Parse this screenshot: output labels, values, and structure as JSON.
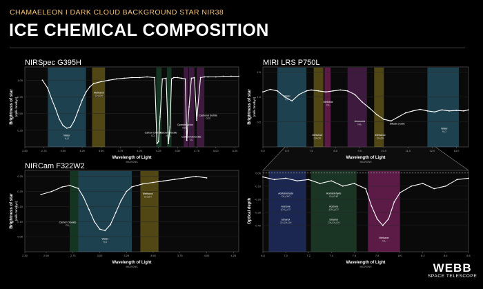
{
  "header": {
    "kicker": "CHAMAELEON I DARK CLOUD BACKGROUND STAR NIR38",
    "title": "ICE CHEMICAL COMPOSITION"
  },
  "logo": {
    "word": "WEBB",
    "sub": "SPACE TELESCOPE"
  },
  "colors": {
    "water": "#2f6f88",
    "methanol": "#8a7a1e",
    "carbon": "#1f5a38",
    "purple": "#6a2a6a",
    "methane": "#a02a7a",
    "blue": "#2a3f8a",
    "green": "#2a5a3a",
    "grid": "#2a2a2a",
    "line": "#ffffff"
  },
  "chart_data": [
    {
      "type": "line",
      "title": "NIRSpec G395H",
      "xlabel": "Wavelength of Light",
      "xunit": "MICRONS",
      "ylabel": "Brightness of star",
      "yunit": "(milli-Janskys)",
      "xlim": [
        2.5,
        5.3
      ],
      "ylim": [
        0,
        1.2
      ],
      "xticks": [
        "2.50",
        "2.75",
        "3.00",
        "3.25",
        "3.50",
        "3.75",
        "4.00",
        "4.25",
        "4.50",
        "4.75",
        "5.00",
        "5.25"
      ],
      "yticks": [
        "0.25",
        "0.50",
        "0.75",
        "1.00"
      ],
      "bands": [
        {
          "from": 2.8,
          "to": 3.3,
          "color": "water"
        },
        {
          "from": 3.38,
          "to": 3.55,
          "color": "methanol"
        },
        {
          "from": 4.22,
          "to": 4.29,
          "color": "carbon"
        },
        {
          "from": 4.36,
          "to": 4.42,
          "color": "carbon"
        },
        {
          "from": 4.58,
          "to": 4.64,
          "color": "purple"
        },
        {
          "from": 4.65,
          "to": 4.72,
          "color": "purple"
        },
        {
          "from": 4.75,
          "to": 4.85,
          "color": "purple"
        }
      ],
      "series": [
        {
          "name": "spectrum",
          "x": [
            2.73,
            2.8,
            2.85,
            2.9,
            2.95,
            3.0,
            3.05,
            3.1,
            3.15,
            3.2,
            3.25,
            3.3,
            3.35,
            3.4,
            3.5,
            3.6,
            3.7,
            3.8,
            3.9,
            4.0,
            4.1,
            4.2,
            4.23,
            4.25,
            4.27,
            4.3,
            4.35,
            4.38,
            4.4,
            4.42,
            4.45,
            4.5,
            4.55,
            4.6,
            4.62,
            4.65,
            4.68,
            4.72,
            4.75,
            4.8,
            4.85,
            4.9,
            5.0,
            5.1,
            5.2,
            5.3
          ],
          "y": [
            1.0,
            0.88,
            0.72,
            0.58,
            0.42,
            0.32,
            0.28,
            0.3,
            0.4,
            0.55,
            0.7,
            0.82,
            0.9,
            0.95,
            0.98,
            1.0,
            1.02,
            1.03,
            1.04,
            1.04,
            1.05,
            1.04,
            0.05,
            0.08,
            0.45,
            1.02,
            1.03,
            0.05,
            0.3,
            1.02,
            1.04,
            1.04,
            1.03,
            1.02,
            0.1,
            0.6,
            1.03,
            1.04,
            0.4,
            1.04,
            1.05,
            1.05,
            1.05,
            1.06,
            1.06,
            1.06
          ]
        }
      ],
      "annotations": [
        {
          "label": "Water",
          "sub": "H₂O",
          "x": 3.05,
          "y": 0.16
        },
        {
          "label": "Methanol",
          "sub": "CH₃OH",
          "x": 3.47,
          "y": 0.8
        },
        {
          "label": "Carbon Dioxide",
          "sub": "CO₂",
          "x": 4.18,
          "y": 0.2
        },
        {
          "label": "Carbon Dioxide",
          "sub": "¹³CO₂",
          "x": 4.38,
          "y": 0.2
        },
        {
          "label": "Cyanate Anion",
          "sub": "OCN⁻",
          "x": 4.6,
          "y": 0.32
        },
        {
          "label": "Carbon Monoxide",
          "sub": "CO",
          "x": 4.68,
          "y": 0.14
        },
        {
          "label": "Carbonyl Sulfide",
          "sub": "OCS",
          "x": 4.9,
          "y": 0.46
        }
      ]
    },
    {
      "type": "line",
      "title": "MIRI LRS P750L",
      "xlabel": "Wavelength of Light",
      "xunit": "MICRONS",
      "ylabel": "Brightness of star",
      "yunit": "(milli-Janskys)",
      "xlim": [
        5,
        13.5
      ],
      "ylim": [
        0,
        1.6
      ],
      "xticks": [
        "5.0",
        "6.0",
        "7.0",
        "8.0",
        "9.0",
        "10.0",
        "11.0",
        "12.0",
        "13.0"
      ],
      "yticks": [
        "0.5",
        "1.0",
        "1.5"
      ],
      "bands": [
        {
          "from": 5.6,
          "to": 6.8,
          "color": "water"
        },
        {
          "from": 7.1,
          "to": 7.5,
          "color": "methanol"
        },
        {
          "from": 7.55,
          "to": 7.8,
          "color": "methane"
        },
        {
          "from": 8.5,
          "to": 9.3,
          "color": "purple"
        },
        {
          "from": 9.6,
          "to": 10.0,
          "color": "methanol"
        },
        {
          "from": 11.8,
          "to": 13.1,
          "color": "water"
        }
      ],
      "series": [
        {
          "name": "spectrum",
          "x": [
            5.0,
            5.3,
            5.6,
            5.9,
            6.2,
            6.5,
            6.8,
            7.0,
            7.3,
            7.6,
            7.9,
            8.2,
            8.5,
            8.8,
            9.1,
            9.4,
            9.7,
            10.0,
            10.3,
            10.6,
            10.9,
            11.2,
            11.5,
            11.8,
            12.1,
            12.4,
            12.7,
            13.0,
            13.3,
            13.5
          ],
          "y": [
            1.1,
            1.15,
            1.12,
            1.0,
            0.92,
            1.05,
            1.12,
            1.14,
            1.12,
            1.1,
            1.12,
            1.14,
            1.12,
            1.05,
            0.9,
            0.78,
            0.65,
            0.55,
            0.52,
            0.6,
            0.68,
            0.72,
            0.75,
            0.72,
            0.7,
            0.74,
            0.72,
            0.73,
            0.72,
            0.74
          ]
        }
      ],
      "annotations": [
        {
          "label": "Water",
          "sub": "H₂O",
          "x": 6.0,
          "y": 1.0
        },
        {
          "label": "Methane",
          "sub": "CH₄",
          "x": 7.7,
          "y": 0.88
        },
        {
          "label": "Methanol",
          "sub": "CH₃OH",
          "x": 7.25,
          "y": 0.22
        },
        {
          "label": "Ammonia",
          "sub": "NH₃",
          "x": 9.0,
          "y": 0.5
        },
        {
          "label": "Methanol",
          "sub": "CH₃OH",
          "x": 9.85,
          "y": 0.22
        },
        {
          "label": "Silicate (rock)",
          "x": 10.55,
          "y": 0.45
        },
        {
          "label": "Water",
          "sub": "H₂O",
          "x": 12.5,
          "y": 0.35
        }
      ]
    },
    {
      "type": "line",
      "title": "NIRCam F322W2",
      "xlabel": "Wavelength of Light",
      "xunit": "MICRONS",
      "ylabel": "Brightness of star",
      "yunit": "(milli-Janskys)",
      "xlim": [
        2.3,
        4.3
      ],
      "ylim": [
        0,
        0.27
      ],
      "xticks": [
        "2.30",
        "2.50",
        "2.75",
        "3.00",
        "3.25",
        "3.50",
        "3.75",
        "4.00",
        "4.25"
      ],
      "yticks": [
        "0.05",
        "0.10",
        "0.15",
        "0.20",
        "0.25"
      ],
      "bands": [
        {
          "from": 2.72,
          "to": 2.8,
          "color": "carbon"
        },
        {
          "from": 2.8,
          "to": 3.3,
          "color": "water"
        },
        {
          "from": 3.38,
          "to": 3.55,
          "color": "methanol"
        }
      ],
      "series": [
        {
          "name": "spectrum",
          "x": [
            2.45,
            2.55,
            2.65,
            2.72,
            2.8,
            2.85,
            2.9,
            2.95,
            3.0,
            3.05,
            3.1,
            3.15,
            3.2,
            3.25,
            3.3,
            3.35,
            3.4,
            3.5,
            3.6,
            3.7,
            3.8,
            3.9,
            4.0
          ],
          "y": [
            0.19,
            0.2,
            0.215,
            0.22,
            0.21,
            0.18,
            0.14,
            0.1,
            0.075,
            0.07,
            0.09,
            0.13,
            0.17,
            0.2,
            0.215,
            0.22,
            0.225,
            0.23,
            0.235,
            0.24,
            0.245,
            0.25,
            0.245
          ]
        }
      ],
      "annotations": [
        {
          "label": "Carbon Dioxide",
          "sub": "CO₂",
          "x": 2.7,
          "y": 0.095
        },
        {
          "label": "Water",
          "sub": "H₂O",
          "x": 3.05,
          "y": 0.04
        },
        {
          "label": "Methanol",
          "sub": "CH₃OH",
          "x": 3.45,
          "y": 0.19
        }
      ]
    },
    {
      "type": "line",
      "title": "",
      "xlabel": "Wavelength of Light",
      "xunit": "MICRONS",
      "ylabel": "Optical depth",
      "xlim": [
        6.8,
        8.6
      ],
      "ylim": [
        -0.6,
        0.02
      ],
      "xticks": [
        "6.8",
        "7.0",
        "7.2",
        "7.4",
        "7.6",
        "7.8",
        "8.0",
        "8.2",
        "8.4",
        "8.6"
      ],
      "yticks": [
        "0.00",
        "-0.10",
        "-0.20",
        "-0.30",
        "-0.40"
      ],
      "bands": [
        {
          "from": 6.85,
          "to": 7.18,
          "color": "blue"
        },
        {
          "from": 7.22,
          "to": 7.62,
          "color": "green"
        },
        {
          "from": 7.72,
          "to": 8.0,
          "color": "methane"
        }
      ],
      "series": [
        {
          "name": "spectrum",
          "x": [
            6.8,
            6.9,
            7.0,
            7.1,
            7.2,
            7.3,
            7.4,
            7.5,
            7.6,
            7.7,
            7.75,
            7.8,
            7.85,
            7.9,
            7.95,
            8.0,
            8.1,
            8.2,
            8.3,
            8.4,
            8.5,
            8.6
          ],
          "y": [
            -0.03,
            -0.05,
            -0.04,
            -0.06,
            -0.05,
            -0.08,
            -0.06,
            -0.1,
            -0.08,
            -0.12,
            -0.25,
            -0.35,
            -0.4,
            -0.35,
            -0.22,
            -0.15,
            -0.1,
            -0.08,
            -0.12,
            -0.1,
            -0.05,
            -0.04
          ]
        }
      ],
      "refline": 0,
      "annotations": [
        {
          "label": "Acetaldehyde",
          "sub": "CH₃CHO",
          "x": 7.0,
          "y": -0.16
        },
        {
          "label": "Acetone",
          "sub": "(CH₃)₂CO",
          "x": 7.0,
          "y": -0.26
        },
        {
          "label": "Ethanol",
          "sub": "CH₃CH₂OH",
          "x": 7.0,
          "y": -0.36
        },
        {
          "label": "Acetaldehyde",
          "sub": "CH₃CHO",
          "x": 7.42,
          "y": -0.16
        },
        {
          "label": "Acetone",
          "sub": "(CH₃)₂CO",
          "x": 7.42,
          "y": -0.26
        },
        {
          "label": "Ethanol",
          "sub": "CH₃CH₂OH",
          "x": 7.42,
          "y": -0.36
        },
        {
          "label": "Methane",
          "sub": "CH₄",
          "x": 7.86,
          "y": -0.5
        }
      ]
    }
  ]
}
